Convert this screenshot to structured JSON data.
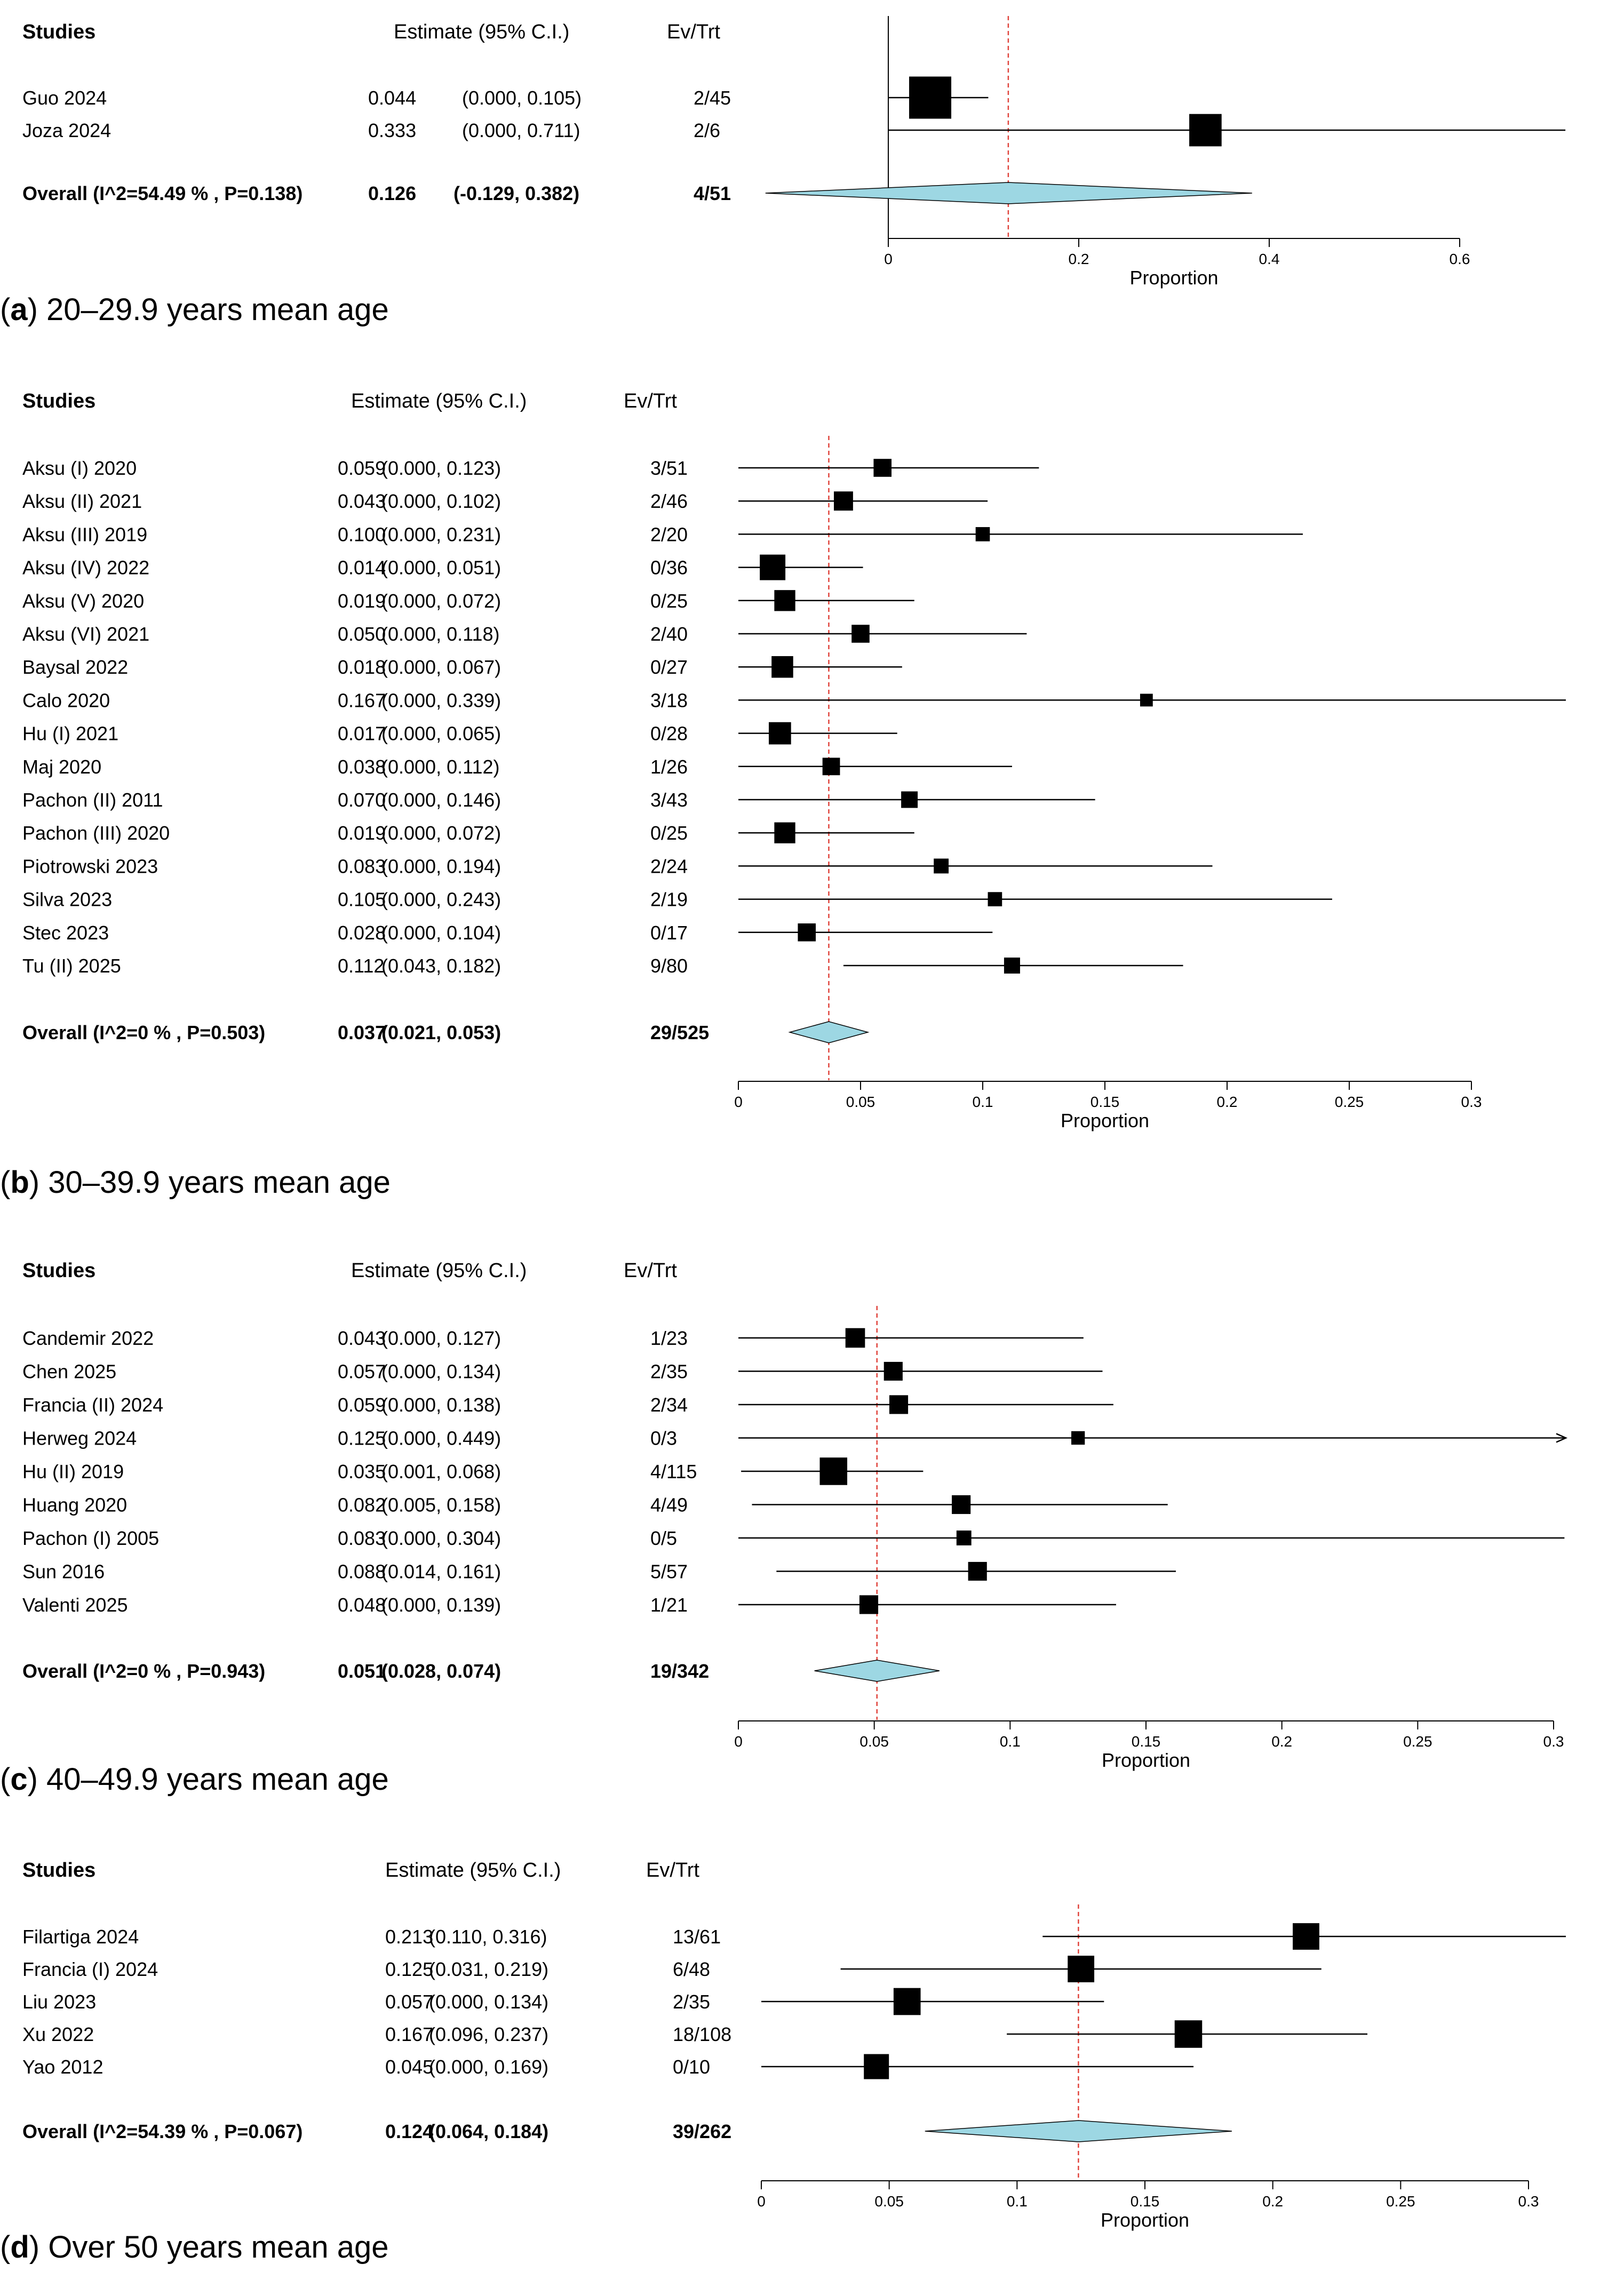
{
  "chart_data": [
    {
      "type": "forest",
      "panel_label": "a",
      "caption": "20–29.9 years mean age",
      "header": {
        "studies": "Studies",
        "estimate": "Estimate (95% C.I.)",
        "evtrt": "Ev/Trt"
      },
      "xlabel": "Proportion",
      "xticks": [
        "0",
        "0.2",
        "0.4",
        "0.6"
      ],
      "xlim": [
        0,
        0.6
      ],
      "studies": [
        {
          "name": "Guo 2024",
          "est": 0.044,
          "lo": 0.0,
          "hi": 0.105,
          "est_text": "0.044",
          "ci_text": "(0.000, 0.105)",
          "evtrt": "2/45",
          "weight": 0.66
        },
        {
          "name": "Joza 2024",
          "est": 0.333,
          "lo": 0.0,
          "hi": 0.711,
          "est_text": "0.333",
          "ci_text": "(0.000, 0.711)",
          "evtrt": "2/6",
          "weight": 0.34
        }
      ],
      "overall": {
        "label": "Overall (I^2=54.49 % , P=0.138)",
        "est": 0.126,
        "lo": -0.129,
        "hi": 0.382,
        "est_text": "0.126",
        "ci_text": "(-0.129, 0.382)",
        "evtrt": "4/51"
      }
    },
    {
      "type": "forest",
      "panel_label": "b",
      "caption": "30–39.9 years mean age",
      "header": {
        "studies": "Studies",
        "estimate": "Estimate (95% C.I.)",
        "evtrt": "Ev/Trt"
      },
      "xlabel": "Proportion",
      "xticks": [
        "0",
        "0.05",
        "0.1",
        "0.15",
        "0.2",
        "0.25",
        "0.3"
      ],
      "xlim": [
        0,
        0.3
      ],
      "studies": [
        {
          "name": "Aksu (I) 2020",
          "est": 0.059,
          "lo": 0.0,
          "hi": 0.123,
          "est_text": "0.059",
          "ci_text": "(0.000, 0.123)",
          "evtrt": "3/51",
          "weight": 0.06
        },
        {
          "name": "Aksu (II) 2021",
          "est": 0.043,
          "lo": 0.0,
          "hi": 0.102,
          "est_text": "0.043",
          "ci_text": "(0.000, 0.102)",
          "evtrt": "2/46",
          "weight": 0.075
        },
        {
          "name": "Aksu (III) 2019",
          "est": 0.1,
          "lo": 0.0,
          "hi": 0.231,
          "est_text": "0.100",
          "ci_text": "(0.000, 0.231)",
          "evtrt": "2/20",
          "weight": 0.025
        },
        {
          "name": "Aksu (IV) 2022",
          "est": 0.014,
          "lo": 0.0,
          "hi": 0.051,
          "est_text": "0.014",
          "ci_text": "(0.000, 0.051)",
          "evtrt": "0/36",
          "weight": 0.18
        },
        {
          "name": "Aksu (V) 2020",
          "est": 0.019,
          "lo": 0.0,
          "hi": 0.072,
          "est_text": "0.019",
          "ci_text": "(0.000, 0.072)",
          "evtrt": "0/25",
          "weight": 0.1
        },
        {
          "name": "Aksu (VI) 2021",
          "est": 0.05,
          "lo": 0.0,
          "hi": 0.118,
          "est_text": "0.050",
          "ci_text": "(0.000, 0.118)",
          "evtrt": "2/40",
          "weight": 0.06
        },
        {
          "name": "Baysal 2022",
          "est": 0.018,
          "lo": 0.0,
          "hi": 0.067,
          "est_text": "0.018",
          "ci_text": "(0.000, 0.067)",
          "evtrt": "0/27",
          "weight": 0.11
        },
        {
          "name": "Calo 2020",
          "est": 0.167,
          "lo": 0.0,
          "hi": 0.339,
          "est_text": "0.167",
          "ci_text": "(0.000, 0.339)",
          "evtrt": "3/18",
          "weight": 0.015
        },
        {
          "name": "Hu (I) 2021",
          "est": 0.017,
          "lo": 0.0,
          "hi": 0.065,
          "est_text": "0.017",
          "ci_text": "(0.000, 0.065)",
          "evtrt": "0/28",
          "weight": 0.12
        },
        {
          "name": "Maj 2020",
          "est": 0.038,
          "lo": 0.0,
          "hi": 0.112,
          "est_text": "0.038",
          "ci_text": "(0.000, 0.112)",
          "evtrt": "1/26",
          "weight": 0.055
        },
        {
          "name": "Pachon (II) 2011",
          "est": 0.07,
          "lo": 0.0,
          "hi": 0.146,
          "est_text": "0.070",
          "ci_text": "(0.000, 0.146)",
          "evtrt": "3/43",
          "weight": 0.045
        },
        {
          "name": "Pachon (III) 2020",
          "est": 0.019,
          "lo": 0.0,
          "hi": 0.072,
          "est_text": "0.019",
          "ci_text": "(0.000, 0.072)",
          "evtrt": "0/25",
          "weight": 0.1
        },
        {
          "name": "Piotrowski 2023",
          "est": 0.083,
          "lo": 0.0,
          "hi": 0.194,
          "est_text": "0.083",
          "ci_text": "(0.000, 0.194)",
          "evtrt": "2/24",
          "weight": 0.03
        },
        {
          "name": "Silva 2023",
          "est": 0.105,
          "lo": 0.0,
          "hi": 0.243,
          "est_text": "0.105",
          "ci_text": "(0.000, 0.243)",
          "evtrt": "2/19",
          "weight": 0.025
        },
        {
          "name": "Stec 2023",
          "est": 0.028,
          "lo": 0.0,
          "hi": 0.104,
          "est_text": "0.028",
          "ci_text": "(0.000, 0.104)",
          "evtrt": "0/17",
          "weight": 0.06
        },
        {
          "name": "Tu (II) 2025",
          "est": 0.112,
          "lo": 0.043,
          "hi": 0.182,
          "est_text": "0.112",
          "ci_text": "(0.043, 0.182)",
          "evtrt": "9/80",
          "weight": 0.04
        }
      ],
      "overall": {
        "label": "Overall (I^2=0 % , P=0.503)",
        "est": 0.037,
        "lo": 0.021,
        "hi": 0.053,
        "est_text": "0.037",
        "ci_text": "(0.021, 0.053)",
        "evtrt": "29/525"
      }
    },
    {
      "type": "forest",
      "panel_label": "c",
      "caption": "40–49.9 years mean age",
      "header": {
        "studies": "Studies",
        "estimate": "Estimate (95% C.I.)",
        "evtrt": "Ev/Trt"
      },
      "xlabel": "Proportion",
      "xticks": [
        "0",
        "0.05",
        "0.1",
        "0.15",
        "0.2",
        "0.25",
        "0.3"
      ],
      "xlim": [
        0,
        0.3
      ],
      "studies": [
        {
          "name": "Candemir 2022",
          "est": 0.043,
          "lo": 0.0,
          "hi": 0.127,
          "est_text": "0.043",
          "ci_text": "(0.000, 0.127)",
          "evtrt": "1/23",
          "weight": 0.08
        },
        {
          "name": "Chen 2025",
          "est": 0.057,
          "lo": 0.0,
          "hi": 0.134,
          "est_text": "0.057",
          "ci_text": "(0.000, 0.134)",
          "evtrt": "2/35",
          "weight": 0.07
        },
        {
          "name": "Francia (II) 2024",
          "est": 0.059,
          "lo": 0.0,
          "hi": 0.138,
          "est_text": "0.059",
          "ci_text": "(0.000, 0.138)",
          "evtrt": "2/34",
          "weight": 0.07
        },
        {
          "name": "Herweg 2024",
          "est": 0.125,
          "lo": 0.0,
          "hi": 0.449,
          "est_text": "0.125",
          "ci_text": "(0.000, 0.449)",
          "evtrt": "0/3",
          "weight": 0.02
        },
        {
          "name": "Hu (II) 2019",
          "est": 0.035,
          "lo": 0.001,
          "hi": 0.068,
          "est_text": "0.035",
          "ci_text": "(0.001, 0.068)",
          "evtrt": "4/115",
          "weight": 0.22
        },
        {
          "name": "Huang 2020",
          "est": 0.082,
          "lo": 0.005,
          "hi": 0.158,
          "est_text": "0.082",
          "ci_text": "(0.005, 0.158)",
          "evtrt": "4/49",
          "weight": 0.07
        },
        {
          "name": "Pachon (I) 2005",
          "est": 0.083,
          "lo": 0.0,
          "hi": 0.304,
          "est_text": "0.083",
          "ci_text": "(0.000, 0.304)",
          "evtrt": "0/5",
          "weight": 0.03
        },
        {
          "name": "Sun 2016",
          "est": 0.088,
          "lo": 0.014,
          "hi": 0.161,
          "est_text": "0.088",
          "ci_text": "(0.014, 0.161)",
          "evtrt": "5/57",
          "weight": 0.07
        },
        {
          "name": "Valenti 2025",
          "est": 0.048,
          "lo": 0.0,
          "hi": 0.139,
          "est_text": "0.048",
          "ci_text": "(0.000, 0.139)",
          "evtrt": "1/21",
          "weight": 0.07
        }
      ],
      "overall": {
        "label": "Overall (I^2=0 % , P=0.943)",
        "est": 0.051,
        "lo": 0.028,
        "hi": 0.074,
        "est_text": "0.051",
        "ci_text": "(0.028, 0.074)",
        "evtrt": "19/342"
      }
    },
    {
      "type": "forest",
      "panel_label": "d",
      "caption": "Over 50 years mean age",
      "header": {
        "studies": "Studies",
        "estimate": "Estimate (95% C.I.)",
        "evtrt": "Ev/Trt"
      },
      "xlabel": "Proportion",
      "xticks": [
        "0",
        "0.05",
        "0.1",
        "0.15",
        "0.2",
        "0.25",
        "0.3"
      ],
      "xlim": [
        0,
        0.3
      ],
      "studies": [
        {
          "name": "Filartiga 2024",
          "est": 0.213,
          "lo": 0.11,
          "hi": 0.316,
          "est_text": "0.213",
          "ci_text": "(0.110, 0.316)",
          "evtrt": "13/61",
          "weight": 0.2
        },
        {
          "name": "Francia (I) 2024",
          "est": 0.125,
          "lo": 0.031,
          "hi": 0.219,
          "est_text": "0.125",
          "ci_text": "(0.031, 0.219)",
          "evtrt": "6/48",
          "weight": 0.2
        },
        {
          "name": "Liu 2023",
          "est": 0.057,
          "lo": 0.0,
          "hi": 0.134,
          "est_text": "0.057",
          "ci_text": "(0.000, 0.134)",
          "evtrt": "2/35",
          "weight": 0.21
        },
        {
          "name": "Xu 2022",
          "est": 0.167,
          "lo": 0.096,
          "hi": 0.237,
          "est_text": "0.167",
          "ci_text": "(0.096, 0.237)",
          "evtrt": "18/108",
          "weight": 0.22
        },
        {
          "name": "Yao 2012",
          "est": 0.045,
          "lo": 0.0,
          "hi": 0.169,
          "est_text": "0.045",
          "ci_text": "(0.000, 0.169)",
          "evtrt": "0/10",
          "weight": 0.17
        }
      ],
      "overall": {
        "label": "Overall (I^2=54.39 % , P=0.067)",
        "est": 0.124,
        "lo": 0.064,
        "hi": 0.184,
        "est_text": "0.124",
        "ci_text": "(0.064, 0.184)",
        "evtrt": "39/262"
      }
    }
  ],
  "colors": {
    "diamond_fill": "#9dd7e3",
    "reference_line": "#e0443c",
    "marker": "#000000",
    "ink": "#000000"
  }
}
